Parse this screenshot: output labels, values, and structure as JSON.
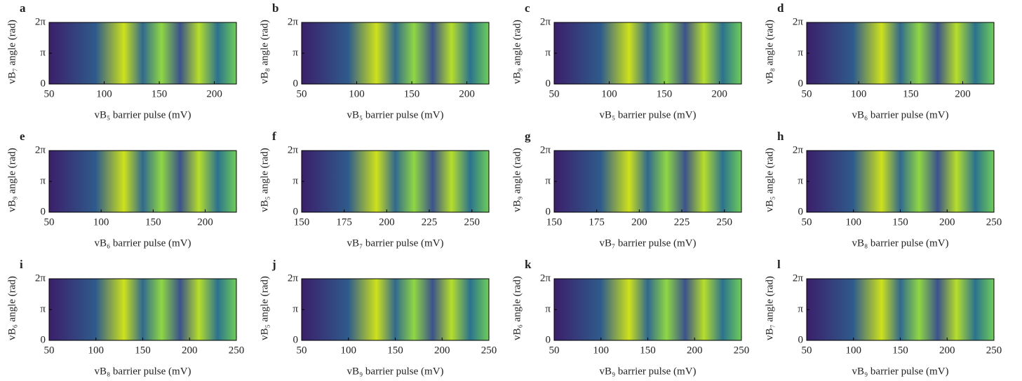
{
  "chart_data": [
    {
      "type": "heatmap",
      "label": "a",
      "xlabel": "vB₅ barrier pulse (mV)",
      "ylabel": "vB₇ angle (rad)",
      "xlim": [
        50,
        220
      ],
      "xticks": [
        50,
        100,
        150,
        200
      ],
      "ylim": [
        0,
        6.28319
      ],
      "yticks": [
        0,
        {
          "value": 3.14159,
          "label": "π"
        },
        {
          "value": 6.28319,
          "label": "2π"
        }
      ]
    },
    {
      "type": "heatmap",
      "label": "b",
      "xlabel": "vB₅ barrier pulse (mV)",
      "ylabel": "vB₈ angle (rad)",
      "xlim": [
        50,
        220
      ],
      "xticks": [
        50,
        100,
        150,
        200
      ],
      "ylim": [
        0,
        6.28319
      ],
      "yticks": [
        0,
        {
          "value": 3.14159,
          "label": "π"
        },
        {
          "value": 6.28319,
          "label": "2π"
        }
      ]
    },
    {
      "type": "heatmap",
      "label": "c",
      "xlabel": "vB₅ barrier pulse (mV)",
      "ylabel": "vB₉ angle (rad)",
      "xlim": [
        50,
        220
      ],
      "xticks": [
        50,
        100,
        150,
        200
      ],
      "ylim": [
        0,
        6.28319
      ],
      "yticks": [
        0,
        {
          "value": 3.14159,
          "label": "π"
        },
        {
          "value": 6.28319,
          "label": "2π"
        }
      ]
    },
    {
      "type": "heatmap",
      "label": "d",
      "xlabel": "vB₆ barrier pulse (mV)",
      "ylabel": "vB₈ angle (rad)",
      "xlim": [
        50,
        230
      ],
      "xticks": [
        50,
        100,
        150,
        200
      ],
      "ylim": [
        0,
        6.28319
      ],
      "yticks": [
        0,
        {
          "value": 3.14159,
          "label": "π"
        },
        {
          "value": 6.28319,
          "label": "2π"
        }
      ]
    },
    {
      "type": "heatmap",
      "label": "e",
      "xlabel": "vB₆ barrier pulse (mV)",
      "ylabel": "vB₉ angle (rad)",
      "xlim": [
        50,
        230
      ],
      "xticks": [
        50,
        100,
        150,
        200
      ],
      "ylim": [
        0,
        6.28319
      ],
      "yticks": [
        0,
        {
          "value": 3.14159,
          "label": "π"
        },
        {
          "value": 6.28319,
          "label": "2π"
        }
      ]
    },
    {
      "type": "heatmap",
      "label": "f",
      "xlabel": "vB₇ barrier pulse (mV)",
      "ylabel": "vB₅ angle (rad)",
      "xlim": [
        150,
        260
      ],
      "xticks": [
        150,
        175,
        200,
        225,
        250
      ],
      "ylim": [
        0,
        6.28319
      ],
      "yticks": [
        0,
        {
          "value": 3.14159,
          "label": "π"
        },
        {
          "value": 6.28319,
          "label": "2π"
        }
      ]
    },
    {
      "type": "heatmap",
      "label": "g",
      "xlabel": "vB₇ barrier pulse (mV)",
      "ylabel": "vB₉ angle (rad)",
      "xlim": [
        150,
        260
      ],
      "xticks": [
        150,
        175,
        200,
        225,
        250
      ],
      "ylim": [
        0,
        6.28319
      ],
      "yticks": [
        0,
        {
          "value": 3.14159,
          "label": "π"
        },
        {
          "value": 6.28319,
          "label": "2π"
        }
      ]
    },
    {
      "type": "heatmap",
      "label": "h",
      "xlabel": "vB₈ barrier pulse (mV)",
      "ylabel": "vB₅ angle (rad)",
      "xlim": [
        50,
        250
      ],
      "xticks": [
        50,
        100,
        150,
        200,
        250
      ],
      "ylim": [
        0,
        6.28319
      ],
      "yticks": [
        0,
        {
          "value": 3.14159,
          "label": "π"
        },
        {
          "value": 6.28319,
          "label": "2π"
        }
      ]
    },
    {
      "type": "heatmap",
      "label": "i",
      "xlabel": "vB₈ barrier pulse (mV)",
      "ylabel": "vB₆ angle (rad)",
      "xlim": [
        50,
        250
      ],
      "xticks": [
        50,
        100,
        150,
        200,
        250
      ],
      "ylim": [
        0,
        6.28319
      ],
      "yticks": [
        0,
        {
          "value": 3.14159,
          "label": "π"
        },
        {
          "value": 6.28319,
          "label": "2π"
        }
      ]
    },
    {
      "type": "heatmap",
      "label": "j",
      "xlabel": "vB₉ barrier pulse (mV)",
      "ylabel": "vB₅ angle (rad)",
      "xlim": [
        50,
        250
      ],
      "xticks": [
        50,
        100,
        150,
        200,
        250
      ],
      "ylim": [
        0,
        6.28319
      ],
      "yticks": [
        0,
        {
          "value": 3.14159,
          "label": "π"
        },
        {
          "value": 6.28319,
          "label": "2π"
        }
      ]
    },
    {
      "type": "heatmap",
      "label": "k",
      "xlabel": "vB₉ barrier pulse (mV)",
      "ylabel": "vB₆ angle (rad)",
      "xlim": [
        50,
        250
      ],
      "xticks": [
        50,
        100,
        150,
        200,
        250
      ],
      "ylim": [
        0,
        6.28319
      ],
      "yticks": [
        0,
        {
          "value": 3.14159,
          "label": "π"
        },
        {
          "value": 6.28319,
          "label": "2π"
        }
      ]
    },
    {
      "type": "heatmap",
      "label": "l",
      "xlabel": "vB₉ barrier pulse (mV)",
      "ylabel": "vB₇ angle (rad)",
      "xlim": [
        50,
        250
      ],
      "xticks": [
        50,
        100,
        150,
        200,
        250
      ],
      "ylim": [
        0,
        6.28319
      ],
      "yticks": [
        0,
        {
          "value": 3.14159,
          "label": "π"
        },
        {
          "value": 6.28319,
          "label": "2π"
        }
      ]
    }
  ]
}
